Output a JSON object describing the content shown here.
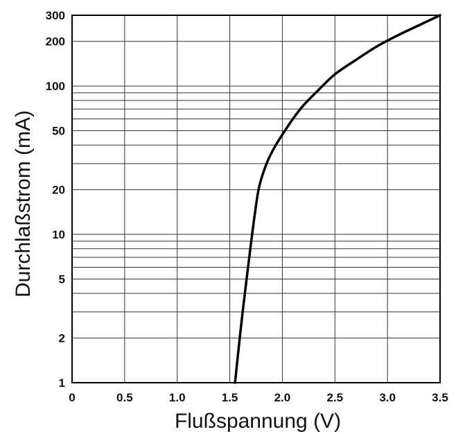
{
  "chart_data": {
    "type": "line",
    "title": "",
    "xlabel": "Flußspannung (V)",
    "ylabel": "Durchlaßstrom (mA)",
    "xlim": [
      0,
      3.5
    ],
    "ylim": [
      1,
      300
    ],
    "yscale": "log",
    "grid": true,
    "x_ticks": [
      0,
      0.5,
      1.0,
      1.5,
      2.0,
      2.5,
      3.0,
      3.5
    ],
    "x_tick_labels": [
      "0",
      "0.5",
      "1.0",
      "1.5",
      "2.0",
      "2.5",
      "3.0",
      "3.5"
    ],
    "y_ticks": [
      1,
      2,
      5,
      10,
      20,
      50,
      100,
      200,
      300
    ],
    "y_tick_labels": [
      "1",
      "2",
      "5",
      "10",
      "20",
      "50",
      "100",
      "200",
      "300"
    ],
    "y_minor_gridlines": [
      3,
      4,
      6,
      7,
      8,
      9,
      30,
      40,
      60,
      70,
      80,
      90
    ],
    "series": [
      {
        "color": "#000000",
        "x": [
          1.55,
          1.58,
          1.62,
          1.66,
          1.7,
          1.74,
          1.78,
          1.85,
          1.92,
          2.0,
          2.1,
          2.2,
          2.35,
          2.5,
          2.7,
          2.9,
          3.1,
          3.3,
          3.5
        ],
        "y": [
          1,
          1.6,
          2.9,
          5,
          8.5,
          14,
          21,
          30,
          38,
          47,
          60,
          74,
          95,
          120,
          150,
          185,
          220,
          257,
          300
        ]
      }
    ]
  }
}
